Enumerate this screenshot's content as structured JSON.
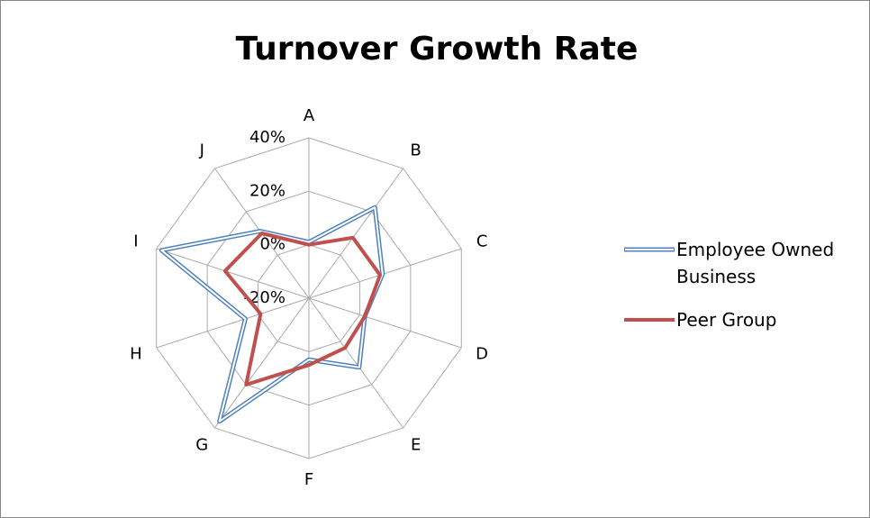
{
  "chart_data": {
    "type": "radar",
    "title": "Turnover Growth Rate",
    "categories": [
      "A",
      "B",
      "C",
      "D",
      "E",
      "F",
      "G",
      "H",
      "I",
      "J"
    ],
    "ylim": [
      -20,
      40
    ],
    "yticks": [
      {
        "value": -20,
        "label": "-20%"
      },
      {
        "value": 0,
        "label": "0%"
      },
      {
        "value": 20,
        "label": "20%"
      },
      {
        "value": 40,
        "label": "40%"
      }
    ],
    "grid": true,
    "legend": "right",
    "series": [
      {
        "name": "Employee Owned Business",
        "color": "#4f81bd",
        "values": [
          1,
          22,
          9,
          2,
          12,
          3,
          37,
          5,
          38,
          11
        ]
      },
      {
        "name": "Peer Group",
        "color": "#c0504d",
        "values": [
          0,
          8,
          8,
          2,
          3,
          5,
          20,
          -1,
          13,
          10
        ]
      }
    ]
  }
}
